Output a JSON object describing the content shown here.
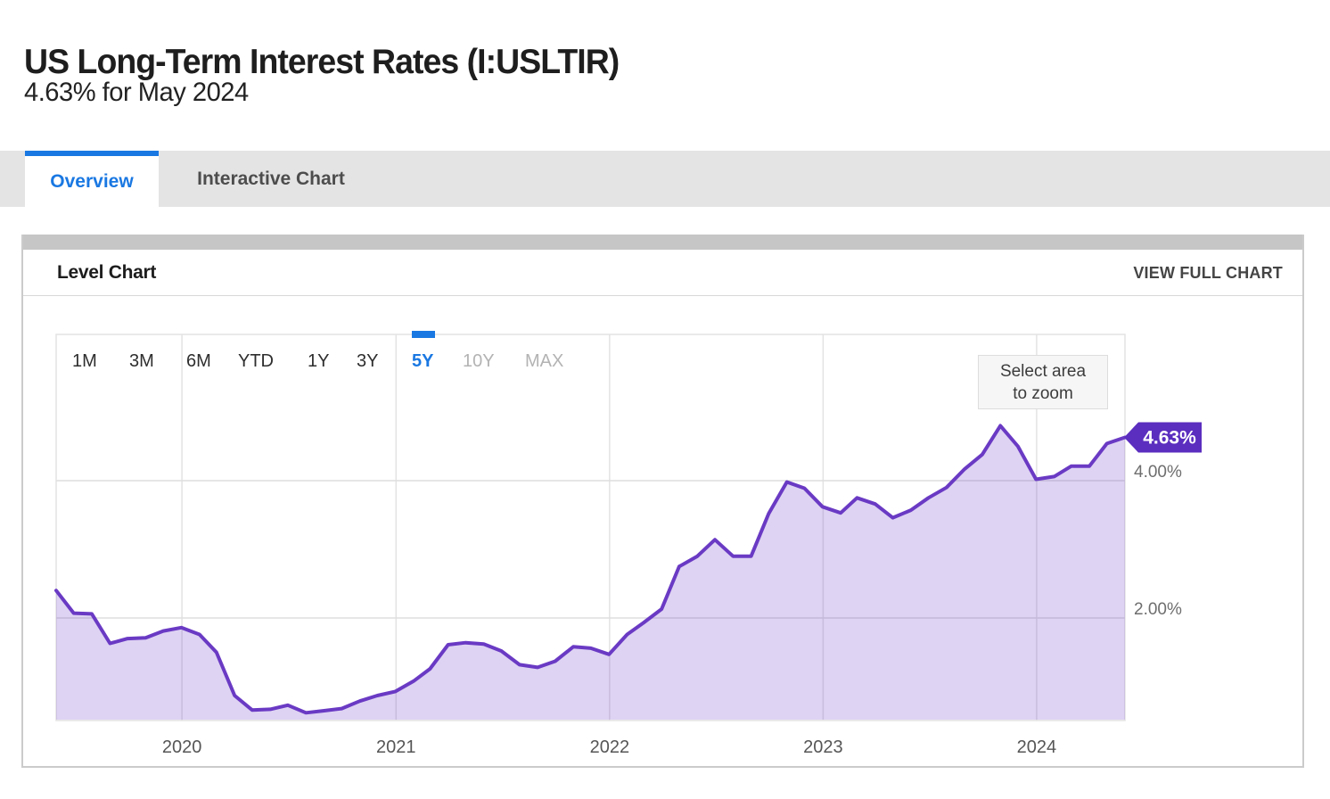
{
  "page": {
    "title": "US Long-Term Interest Rates (I:USLTIR)",
    "subtitle": "4.63% for May 2024"
  },
  "tabs": [
    {
      "label": "Overview",
      "active": true
    },
    {
      "label": "Interactive Chart",
      "active": false
    }
  ],
  "panel": {
    "title": "Level Chart",
    "action": "VIEW FULL CHART"
  },
  "range_selector": {
    "options": [
      {
        "label": "1M",
        "state": "default"
      },
      {
        "label": "3M",
        "state": "default"
      },
      {
        "label": "6M",
        "state": "default"
      },
      {
        "label": "YTD",
        "state": "default"
      },
      {
        "label": "1Y",
        "state": "default"
      },
      {
        "label": "3Y",
        "state": "default"
      },
      {
        "label": "5Y",
        "state": "selected"
      },
      {
        "label": "10Y",
        "state": "disabled"
      },
      {
        "label": "MAX",
        "state": "disabled"
      }
    ]
  },
  "zoom_hint": {
    "line1": "Select area",
    "line2": "to zoom"
  },
  "chart_data": {
    "type": "area",
    "title": "Level Chart",
    "series_name": "US Long-Term Interest Rates",
    "unit": "%",
    "x": [
      "2019-05-31",
      "2019-06-30",
      "2019-07-31",
      "2019-08-31",
      "2019-09-30",
      "2019-10-31",
      "2019-11-30",
      "2019-12-31",
      "2020-01-31",
      "2020-02-29",
      "2020-03-31",
      "2020-04-30",
      "2020-05-31",
      "2020-06-30",
      "2020-07-31",
      "2020-08-31",
      "2020-09-30",
      "2020-10-31",
      "2020-11-30",
      "2020-12-31",
      "2021-01-31",
      "2021-02-28",
      "2021-03-31",
      "2021-04-30",
      "2021-05-31",
      "2021-06-30",
      "2021-07-31",
      "2021-08-31",
      "2021-09-30",
      "2021-10-31",
      "2021-11-30",
      "2021-12-31",
      "2022-01-31",
      "2022-02-28",
      "2022-03-31",
      "2022-04-30",
      "2022-05-31",
      "2022-06-30",
      "2022-07-31",
      "2022-08-31",
      "2022-09-30",
      "2022-10-31",
      "2022-11-30",
      "2022-12-31",
      "2023-01-31",
      "2023-02-28",
      "2023-03-31",
      "2023-04-30",
      "2023-05-31",
      "2023-06-30",
      "2023-07-31",
      "2023-08-31",
      "2023-09-30",
      "2023-10-31",
      "2023-11-30",
      "2023-12-31",
      "2024-01-31",
      "2024-02-29",
      "2024-03-31",
      "2024-04-30",
      "2024-05-31"
    ],
    "values": [
      2.4,
      2.07,
      2.06,
      1.63,
      1.7,
      1.71,
      1.81,
      1.86,
      1.76,
      1.5,
      0.87,
      0.66,
      0.67,
      0.73,
      0.62,
      0.65,
      0.68,
      0.79,
      0.87,
      0.93,
      1.08,
      1.26,
      1.61,
      1.64,
      1.62,
      1.52,
      1.32,
      1.28,
      1.37,
      1.58,
      1.56,
      1.47,
      1.76,
      1.93,
      2.13,
      2.75,
      2.9,
      3.14,
      2.9,
      2.9,
      3.52,
      3.98,
      3.89,
      3.62,
      3.53,
      3.75,
      3.66,
      3.46,
      3.57,
      3.75,
      3.9,
      4.17,
      4.38,
      4.8,
      4.5,
      4.02,
      4.06,
      4.21,
      4.21,
      4.54,
      4.63
    ],
    "x_tick_labels": [
      "2020",
      "2021",
      "2022",
      "2023",
      "2024"
    ],
    "y_ticks": [
      {
        "label": "4.00%",
        "value": 4.0
      },
      {
        "label": "2.00%",
        "value": 2.0
      }
    ],
    "ylim": [
      0.5,
      6.1
    ],
    "grid": true,
    "legend": false,
    "last_value_label": "4.63%",
    "colors": {
      "line": "#6a3ac4",
      "fill": "rgba(106,56,202,0.22)",
      "badge": "#5b2ebf",
      "accent_blue": "#1a78e2"
    }
  }
}
